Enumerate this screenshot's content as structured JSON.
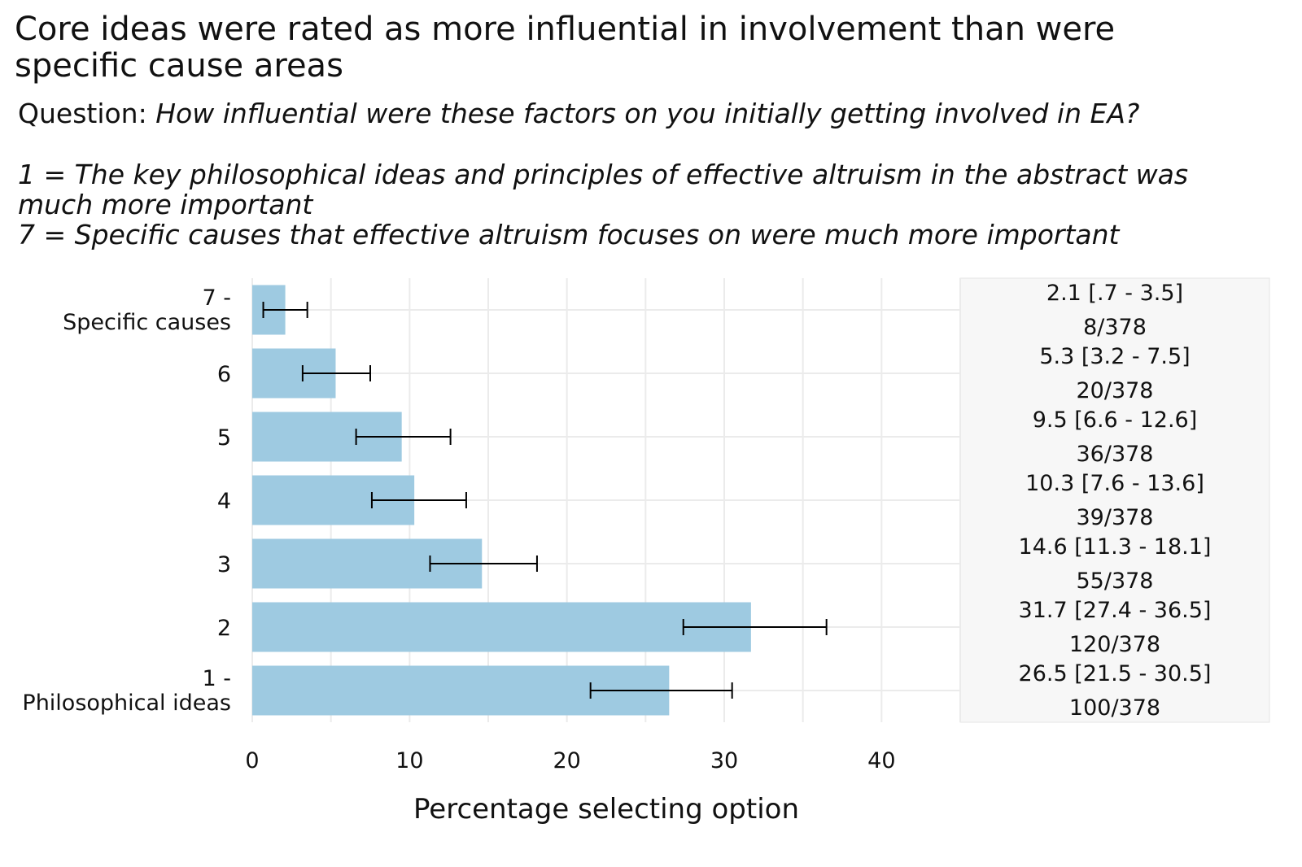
{
  "title": "Core ideas were rated as more influential in involvement than were specific cause areas",
  "question_label": "Question: ",
  "question_text": "How influential were these factors on you initially getting involved in EA?",
  "scale_low": "1 = The key philosophical ideas and principles of effective altruism in the abstract was much more important",
  "scale_high": "7 = Specific causes that effective altruism focuses on were much more important",
  "colors": {
    "bar": "#9ecae1",
    "panel": "#f7f7f7",
    "grid": "#ebebeb",
    "error": "#000000"
  },
  "chart_data": {
    "type": "bar",
    "orientation": "horizontal",
    "xlabel": "Percentage selecting option",
    "ylabel": "",
    "xlim": [
      0,
      45
    ],
    "x_ticks": [
      0,
      10,
      20,
      30,
      40
    ],
    "categories": [
      {
        "lines": [
          "7 -",
          "Specific causes"
        ]
      },
      {
        "lines": [
          "6"
        ]
      },
      {
        "lines": [
          "5"
        ]
      },
      {
        "lines": [
          "4"
        ]
      },
      {
        "lines": [
          "3"
        ]
      },
      {
        "lines": [
          "2"
        ]
      },
      {
        "lines": [
          "1 -",
          "Philosophical ideas"
        ]
      }
    ],
    "values": [
      2.1,
      5.3,
      9.5,
      10.3,
      14.6,
      31.7,
      26.5
    ],
    "ci_low": [
      0.7,
      3.2,
      6.6,
      7.6,
      11.3,
      27.4,
      21.5
    ],
    "ci_high": [
      3.5,
      7.5,
      12.6,
      13.6,
      18.1,
      36.5,
      30.5
    ],
    "annotation_estimate": [
      "2.1 [.7 - 3.5]",
      "5.3 [3.2 - 7.5]",
      "9.5 [6.6 - 12.6]",
      "10.3 [7.6 - 13.6]",
      "14.6 [11.3 - 18.1]",
      "31.7 [27.4 - 36.5]",
      "26.5 [21.5 - 30.5]"
    ],
    "annotation_counts": [
      "8/378",
      "20/378",
      "36/378",
      "39/378",
      "55/378",
      "120/378",
      "100/378"
    ]
  }
}
